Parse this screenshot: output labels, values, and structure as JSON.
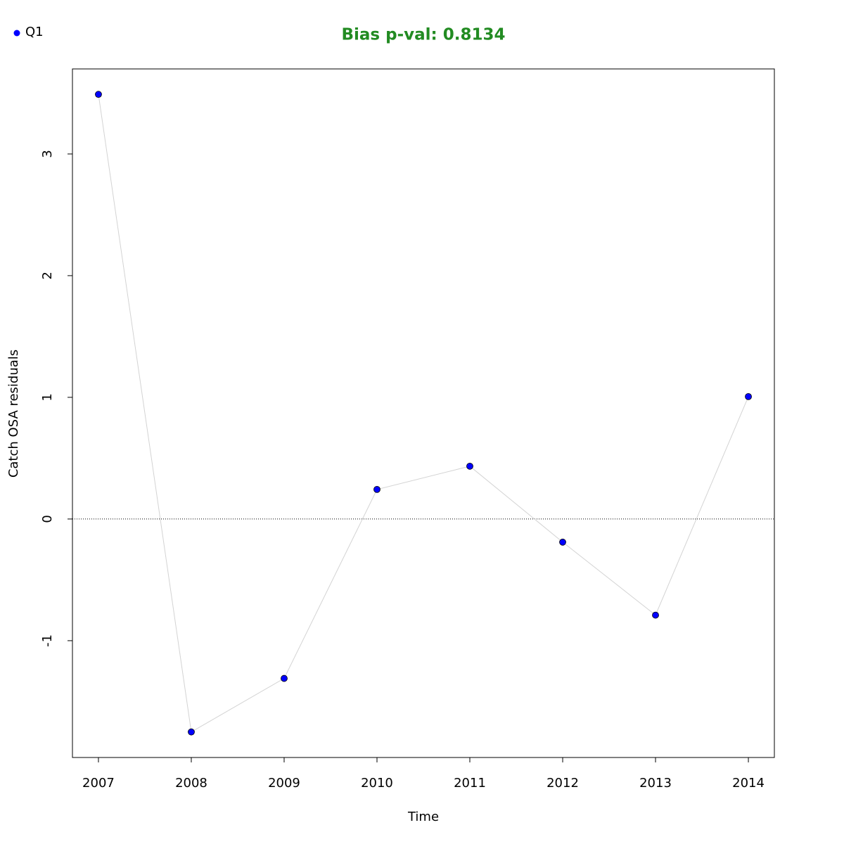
{
  "chart_data": {
    "type": "line",
    "title": "Bias p-val: 0.8134",
    "title_color": "#228b22",
    "x_label": "Time",
    "y_label": "Catch OSA residuals",
    "x": [
      2007,
      2008,
      2009,
      2010,
      2011,
      2012,
      2013,
      2014
    ],
    "series": [
      {
        "name": "Q1",
        "color": "#0000ff",
        "line_color": "#d3d3d3",
        "values": [
          3.49,
          -1.75,
          -1.31,
          0.243,
          0.434,
          -0.19,
          -0.79,
          1.006
        ]
      }
    ],
    "xlim": [
      2006.72,
      2014.28
    ],
    "ylim": [
      -1.96,
      3.699
    ],
    "xticks": [
      2007,
      2008,
      2009,
      2010,
      2011,
      2012,
      2013,
      2014
    ],
    "yticks": [
      -1,
      0,
      1,
      2,
      3
    ],
    "hline": 0,
    "legend": "top-left"
  }
}
